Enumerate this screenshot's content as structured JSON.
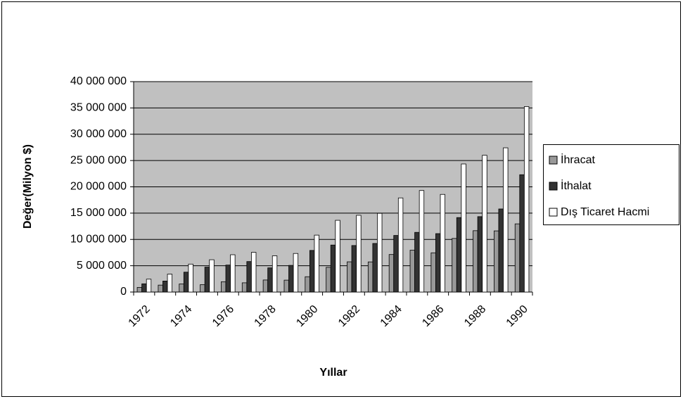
{
  "chart_data": {
    "type": "bar",
    "y_label": "Değer(Milyon $)",
    "x_label": "Yıllar",
    "categories": [
      "1972",
      null,
      "1974",
      null,
      "1976",
      null,
      "1978",
      null,
      "1980",
      null,
      "1982",
      null,
      "1984",
      null,
      "1986",
      null,
      "1988",
      null,
      "1990"
    ],
    "series": [
      {
        "name": "İhracat",
        "color": "#999999",
        "values": [
          885000,
          1317000,
          1532000,
          1401000,
          1960000,
          1753000,
          2288000,
          2261000,
          2910000,
          4703000,
          5746000,
          5728000,
          7134000,
          7958000,
          7457000,
          10190000,
          11662000,
          11625000,
          12959000
        ]
      },
      {
        "name": "İthalat",
        "color": "#333333",
        "values": [
          1563000,
          2086000,
          3778000,
          4739000,
          5129000,
          5796000,
          4599000,
          5069000,
          7909000,
          8933000,
          8843000,
          9235000,
          10757000,
          11343000,
          11105000,
          14158000,
          14335000,
          15792000,
          22302000
        ]
      },
      {
        "name": "Dış Ticaret Hacmi",
        "color": "#ffffff",
        "values": [
          2448000,
          3403000,
          5310000,
          6140000,
          7089000,
          7549000,
          6887000,
          7330000,
          10819000,
          13636000,
          14589000,
          14963000,
          17891000,
          19301000,
          18562000,
          24348000,
          25997000,
          27417000,
          35261000
        ]
      }
    ],
    "ylim": [
      0,
      40000000
    ],
    "yticks": [
      0,
      {
        "value": 5000000,
        "label": "5 000 000"
      },
      {
        "value": 10000000,
        "label": "10 000 000"
      },
      {
        "value": 15000000,
        "label": "15 000 000"
      },
      {
        "value": 20000000,
        "label": "20 000 000"
      },
      {
        "value": 25000000,
        "label": "25 000 000"
      },
      {
        "value": 30000000,
        "label": "30 000 000"
      },
      {
        "value": 35000000,
        "label": "35 000 000"
      },
      {
        "value": 40000000,
        "label": "40 000 000"
      }
    ],
    "grid": true,
    "legend": "right"
  }
}
